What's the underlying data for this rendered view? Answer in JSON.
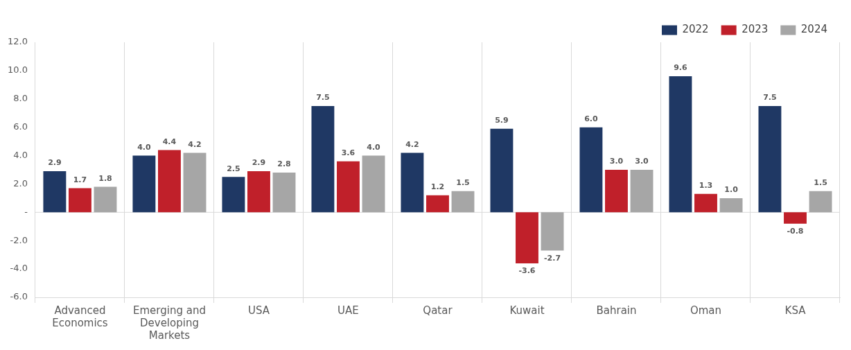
{
  "chart_data": {
    "type": "bar",
    "categories": [
      "Advanced Economics",
      "Emerging and Developing Markets",
      "USA",
      "UAE",
      "Qatar",
      "Kuwait",
      "Bahrain",
      "Oman",
      "KSA"
    ],
    "series": [
      {
        "name": "2022",
        "color": "#1f3864",
        "values": [
          2.9,
          4.0,
          2.5,
          7.5,
          4.2,
          5.9,
          6.0,
          9.6,
          7.5
        ],
        "value_labels": [
          "2.9",
          "4.0",
          "2.5",
          "7.5",
          "4.2",
          "5.9",
          "6.0",
          "9.6",
          "7.5"
        ]
      },
      {
        "name": "2023",
        "color": "#c0202a",
        "values": [
          1.7,
          4.4,
          2.9,
          3.6,
          1.2,
          -3.6,
          3.0,
          1.3,
          -0.8
        ],
        "value_labels": [
          "1.7",
          "4.4",
          "2.9",
          "3.6",
          "1.2",
          "-3.6",
          "3.0",
          "1.3",
          "-0.8"
        ]
      },
      {
        "name": "2024",
        "color": "#a6a6a6",
        "values": [
          1.8,
          4.2,
          2.8,
          4.0,
          1.5,
          -2.7,
          3.0,
          1.0,
          1.5
        ],
        "value_labels": [
          "1.8",
          "4.2",
          "2.8",
          "4.0",
          "1.5",
          "-2.7",
          "3.0",
          "1.0",
          "1.5"
        ]
      }
    ],
    "ylim": [
      -6,
      12
    ],
    "yticks": [
      {
        "value": -6,
        "label": "-6.0"
      },
      {
        "value": -4,
        "label": "-4.0"
      },
      {
        "value": -2,
        "label": "-2.0"
      },
      {
        "value": 0,
        "label": "-"
      },
      {
        "value": 2,
        "label": "2.0"
      },
      {
        "value": 4,
        "label": "4.0"
      },
      {
        "value": 6,
        "label": "6.0"
      },
      {
        "value": 8,
        "label": "8.0"
      },
      {
        "value": 10,
        "label": "10.0"
      },
      {
        "value": 12,
        "label": "12.0"
      }
    ],
    "grid": "x",
    "ref_lines": [
      {
        "axis": "y",
        "value": 0,
        "color": "#d9d9d9"
      }
    ],
    "legend": "top right"
  }
}
